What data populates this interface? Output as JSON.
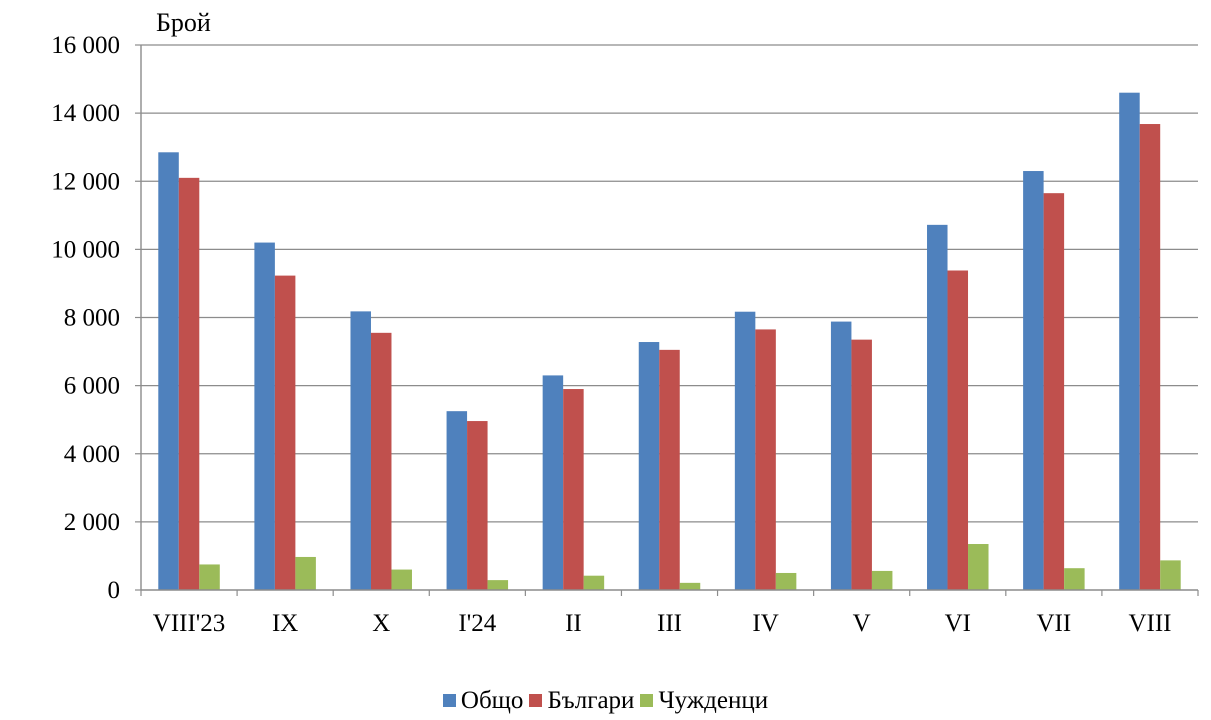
{
  "chart_data": {
    "type": "bar",
    "ylabel": "Брой",
    "xlabel": "",
    "ylim": [
      0,
      16000
    ],
    "yticks": [
      0,
      2000,
      4000,
      6000,
      8000,
      10000,
      12000,
      14000,
      16000
    ],
    "ytick_labels": [
      "0",
      "2 000",
      "4 000",
      "6 000",
      "8 000",
      "10 000",
      "12 000",
      "14 000",
      "16 000"
    ],
    "grid": true,
    "legend_position": "bottom",
    "categories": [
      "VIII'23",
      "IX",
      "X",
      "I'24",
      "II",
      "III",
      "IV",
      "V",
      "VI",
      "VII",
      "VIII"
    ],
    "series": [
      {
        "name": "Общо",
        "color": "#4F81BD",
        "values": [
          12850,
          10200,
          8180,
          5250,
          6300,
          7280,
          8170,
          7880,
          10720,
          12300,
          14600
        ]
      },
      {
        "name": "Българи",
        "color": "#C0504D",
        "values": [
          12100,
          9230,
          7550,
          4960,
          5900,
          7050,
          7650,
          7350,
          9380,
          11650,
          13680
        ]
      },
      {
        "name": "Чужденци",
        "color": "#9BBB59",
        "values": [
          750,
          970,
          600,
          290,
          420,
          210,
          500,
          560,
          1350,
          640,
          870
        ]
      }
    ]
  }
}
